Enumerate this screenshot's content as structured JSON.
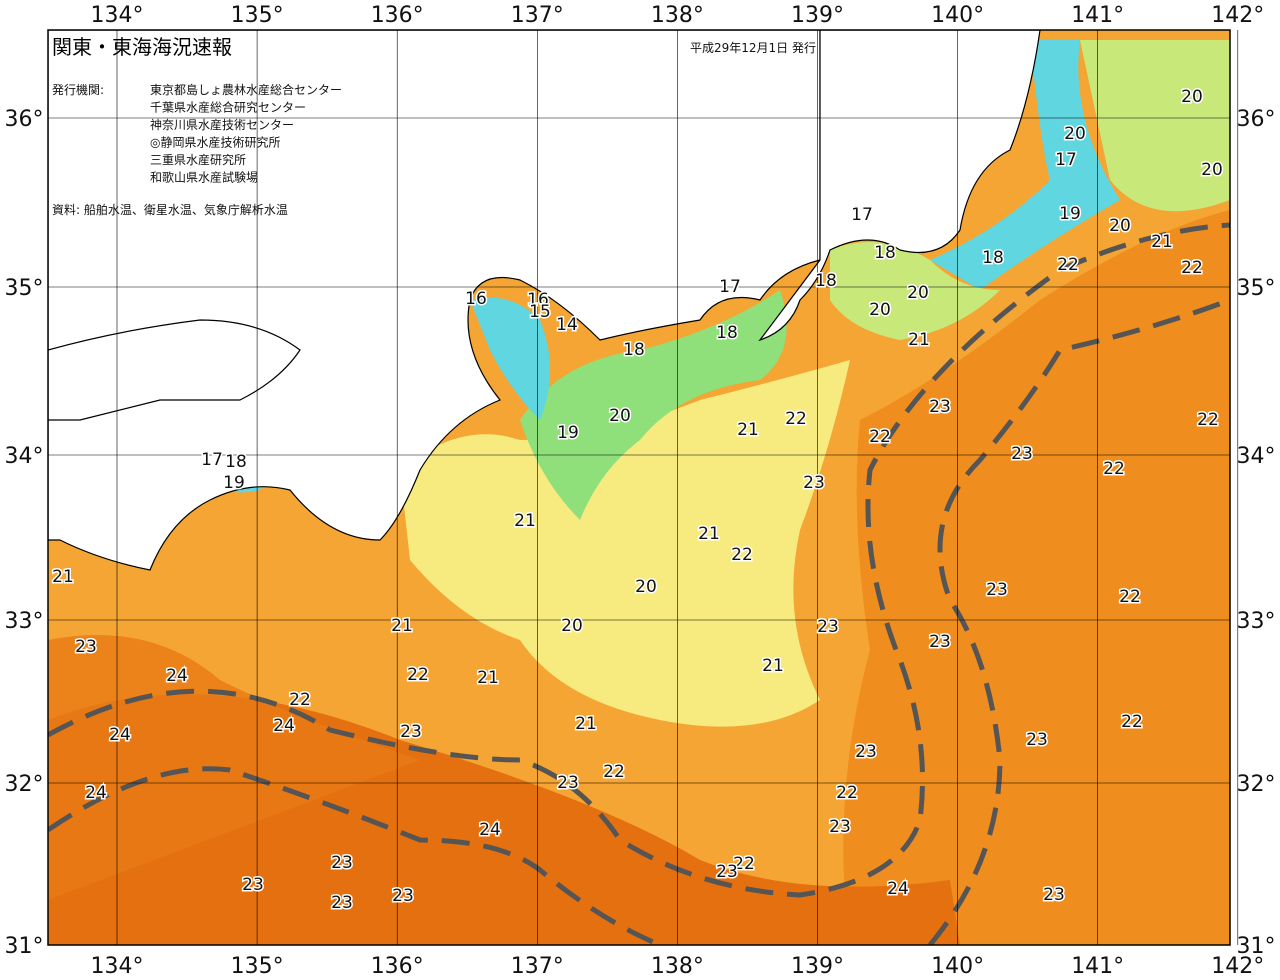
{
  "header": {
    "title": "関東・東海海況速報",
    "date": "平成29年12月1日 発行",
    "issuer_label": "発行機関:",
    "issuers": [
      "東京都島しょ農林水産総合センター",
      "千葉県水産総合研究センター",
      "神奈川県水産技術センター",
      "◎静岡県水産技術研究所",
      "三重県水産研究所",
      "和歌山県水産試験場"
    ],
    "source": "資料: 船舶水温、衛星水温、気象庁解析水温"
  },
  "map": {
    "lon_labels": [
      "134°",
      "135°",
      "136°",
      "137°",
      "138°",
      "139°",
      "140°",
      "141°",
      "142°"
    ],
    "lat_labels": [
      "36°",
      "35°",
      "34°",
      "33°",
      "32°",
      "31°"
    ],
    "contour_labels": [
      "17",
      "20",
      "20",
      "17",
      "20",
      "19",
      "20",
      "21",
      "22",
      "22",
      "18",
      "18",
      "16",
      "16",
      "15",
      "14",
      "17",
      "18",
      "20",
      "20",
      "18",
      "18",
      "21",
      "23",
      "22",
      "22",
      "21",
      "22",
      "20",
      "19",
      "17",
      "18",
      "19",
      "23",
      "22",
      "23",
      "21",
      "21",
      "22",
      "23",
      "22",
      "20",
      "23",
      "23",
      "21",
      "20",
      "21",
      "23",
      "21",
      "22",
      "21",
      "24",
      "22",
      "24",
      "23",
      "24",
      "21",
      "23",
      "23",
      "22",
      "22",
      "23",
      "24",
      "22",
      "23",
      "24",
      "23",
      "22",
      "23",
      "23",
      "24",
      "23",
      "23",
      "23"
    ]
  }
}
